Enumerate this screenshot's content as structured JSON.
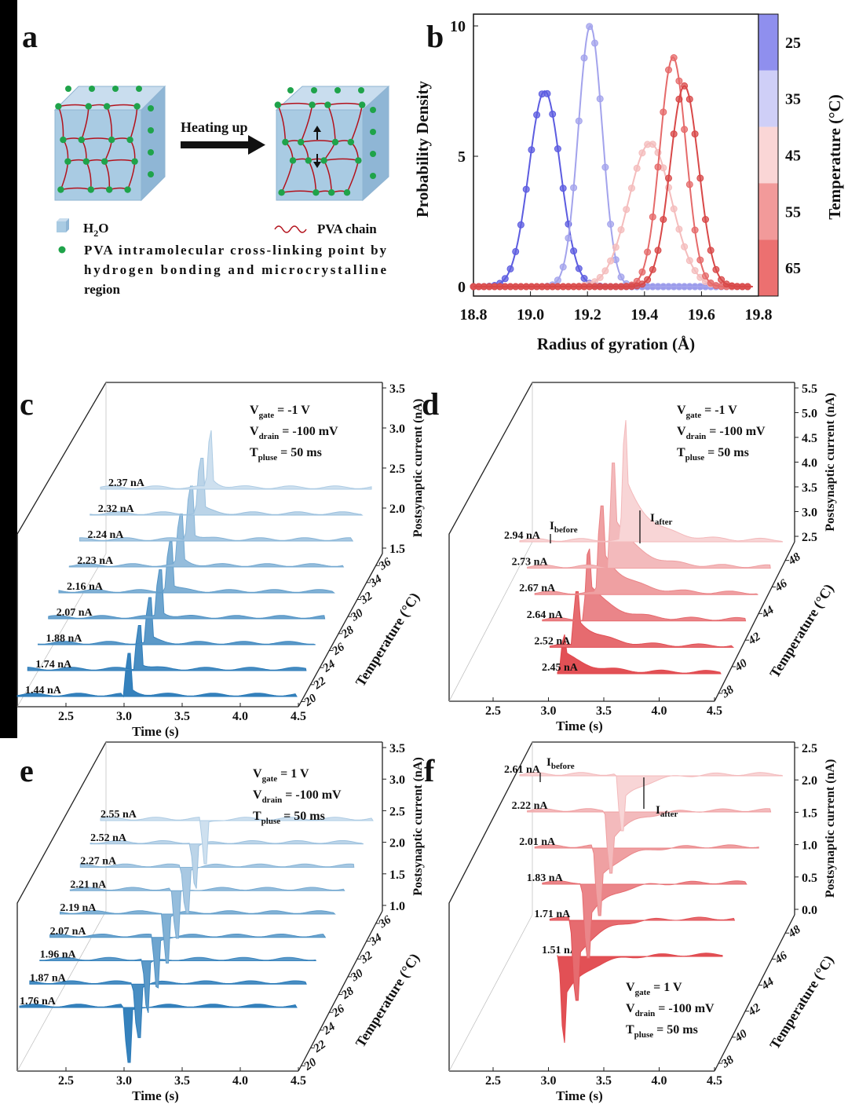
{
  "panel_letters": [
    "a",
    "b",
    "c",
    "d",
    "e",
    "f"
  ],
  "panel_a": {
    "arrow_label": "Heating up",
    "legend": {
      "h2o": "H",
      "h2o_sub": "2",
      "h2o_tail": "O",
      "pva_chain": "PVA chain",
      "crosslink_line1": "PVA intramolecular cross-linking point by",
      "crosslink_line2": "hydrogen bonding and microcrystalline",
      "crosslink_line3": "region"
    },
    "colors": {
      "cube_face": "#a9cbe3",
      "chain": "#b3121c",
      "node": "#1fa34a"
    }
  },
  "chart_data": [
    {
      "type": "line",
      "panel": "b",
      "xlabel": "Radius of gyration (Å)",
      "ylabel": "Probability Density",
      "xlim": [
        18.8,
        19.8
      ],
      "ylim": [
        0,
        10
      ],
      "x_ticks": [
        "18.8",
        "19.0",
        "19.2",
        "19.4",
        "19.6",
        "19.8"
      ],
      "y_ticks": [
        "0",
        "5",
        "10"
      ],
      "colorbar": {
        "label": "Temperature (°C)",
        "ticks": [
          "25",
          "35",
          "45",
          "55",
          "65"
        ],
        "colors": [
          "#8f8fee",
          "#cfcff7",
          "#fad6d6",
          "#f29a9a",
          "#ec7070"
        ]
      },
      "series": [
        {
          "name": "25",
          "color": "#5c5ce0",
          "peak_x": 19.05,
          "peak_y": 7.5,
          "width": 0.055
        },
        {
          "name": "35",
          "color": "#a3a3ec",
          "peak_x": 19.21,
          "peak_y": 10.0,
          "width": 0.042
        },
        {
          "name": "45",
          "color": "#f4bcbc",
          "peak_x": 19.42,
          "peak_y": 5.5,
          "width": 0.075
        },
        {
          "name": "55",
          "color": "#e56a6a",
          "peak_x": 19.5,
          "peak_y": 8.8,
          "width": 0.046
        },
        {
          "name": "65",
          "color": "#d84848",
          "peak_x": 19.54,
          "peak_y": 7.7,
          "width": 0.05
        }
      ]
    },
    {
      "type": "area",
      "panel": "c",
      "xlabel": "Time (s)",
      "ylabel": "Postsynaptic current (nA)",
      "zlabel": "Temperature (°C)",
      "x_ticks": [
        "2.5",
        "3.0",
        "3.5",
        "4.0",
        "4.5"
      ],
      "y_ticks": [
        "1.5",
        "2.0",
        "2.5",
        "3.0",
        "3.5"
      ],
      "z_ticks": [
        "20",
        "22",
        "24",
        "26",
        "28",
        "30",
        "32",
        "34",
        "36"
      ],
      "annotation": {
        "v_gate": "= -1 V",
        "v_drain": "= -100 mV",
        "t_pluse": "= 50 ms"
      },
      "base_color": "#2a7ab8",
      "direction": "up",
      "traces": [
        "1.44 nA",
        "1.74 nA",
        "1.88 nA",
        "2.07 nA",
        "2.16 nA",
        "2.23 nA",
        "2.24 nA",
        "2.32 nA",
        "2.37 nA"
      ]
    },
    {
      "type": "area",
      "panel": "d",
      "xlabel": "Time (s)",
      "ylabel": "Postsynaptic current (nA)",
      "zlabel": "Temperature (°C)",
      "x_ticks": [
        "2.5",
        "3.0",
        "3.5",
        "4.0",
        "4.5"
      ],
      "y_ticks": [
        "2.5",
        "3.0",
        "3.5",
        "4.0",
        "4.5",
        "5.0",
        "5.5"
      ],
      "z_ticks": [
        "38",
        "40",
        "42",
        "44",
        "46",
        "48"
      ],
      "annotation": {
        "v_gate": "= -1 V",
        "v_drain": "= -100 mV",
        "t_pluse": "= 50 ms"
      },
      "base_color": "#e0474c",
      "direction": "up",
      "traces": [
        "2.45 nA",
        "2.52 nA",
        "2.64 nA",
        "2.67 nA",
        "2.73 nA",
        "2.94 nA"
      ],
      "markers": {
        "before": "I",
        "before_sub": "before",
        "after": "I",
        "after_sub": "after"
      }
    },
    {
      "type": "area",
      "panel": "e",
      "xlabel": "Time (s)",
      "ylabel": "Postsynaptic current (nA)",
      "zlabel": "Temperature (°C)",
      "x_ticks": [
        "2.5",
        "3.0",
        "3.5",
        "4.0",
        "4.5"
      ],
      "y_ticks": [
        "1.0",
        "1.5",
        "2.0",
        "2.5",
        "3.0",
        "3.5"
      ],
      "z_ticks": [
        "20",
        "22",
        "24",
        "26",
        "28",
        "30",
        "32",
        "34",
        "36"
      ],
      "annotation": {
        "v_gate": "= 1 V",
        "v_drain": "= -100 mV",
        "t_pluse": "= 50 ms"
      },
      "base_color": "#2a7ab8",
      "direction": "down",
      "traces": [
        "1.76 nA",
        "1.87 nA",
        "1.96 nA",
        "2.07 nA",
        "2.19 nA",
        "2.21 nA",
        "2.27 nA",
        "2.52 nA",
        "2.55 nA"
      ]
    },
    {
      "type": "area",
      "panel": "f",
      "xlabel": "Time (s)",
      "ylabel": "Postsynaptic current (nA)",
      "zlabel": "Temperature (°C)",
      "x_ticks": [
        "2.5",
        "3.0",
        "3.5",
        "4.0",
        "4.5"
      ],
      "y_ticks": [
        "0.0",
        "0.5",
        "1.0",
        "1.5",
        "2.0",
        "2.5"
      ],
      "z_ticks": [
        "38",
        "40",
        "42",
        "44",
        "46",
        "48"
      ],
      "annotation": {
        "v_gate": "= 1 V",
        "v_drain": "= -100 mV",
        "t_pluse": "= 50 ms"
      },
      "base_color": "#e0474c",
      "direction": "down",
      "traces": [
        "1.51 nA",
        "1.71 nA",
        "1.83 nA",
        "2.01 nA",
        "2.22 nA",
        "2.61 nA"
      ],
      "markers": {
        "before": "I",
        "before_sub": "before",
        "after": "I",
        "after_sub": "after"
      }
    }
  ],
  "labels": {
    "v": "V",
    "gate": "gate",
    "drain": "drain",
    "t": "T",
    "pluse": "pluse"
  }
}
